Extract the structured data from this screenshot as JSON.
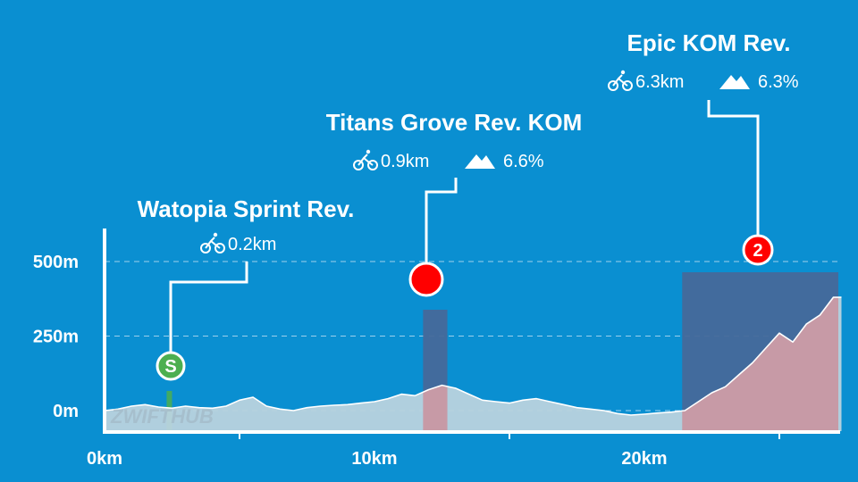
{
  "chart_data": {
    "type": "area",
    "xlabel": "",
    "ylabel": "",
    "xlim": [
      0,
      27.3
    ],
    "ylim": [
      -50,
      620
    ],
    "grid": true,
    "x_ticks": [
      {
        "value": 0,
        "label": "0km"
      },
      {
        "value": 10,
        "label": "10km"
      },
      {
        "value": 20,
        "label": "20km"
      }
    ],
    "y_ticks": [
      {
        "value": 0,
        "label": "0m"
      },
      {
        "value": 250,
        "label": "250m"
      },
      {
        "value": 500,
        "label": "500m"
      }
    ],
    "elevation": {
      "x": [
        0,
        0.5,
        1.0,
        1.5,
        2.0,
        2.5,
        3.0,
        3.5,
        4.0,
        4.5,
        5.0,
        5.5,
        6.0,
        6.5,
        7.0,
        7.5,
        8.0,
        8.5,
        9.0,
        9.5,
        10.0,
        10.5,
        11.0,
        11.5,
        12.0,
        12.5,
        13.0,
        13.5,
        14.0,
        14.5,
        15.0,
        15.5,
        16.0,
        16.5,
        17.0,
        17.5,
        18.0,
        18.5,
        19.0,
        19.5,
        20.0,
        20.5,
        21.0,
        21.5,
        22.0,
        22.5,
        23.0,
        23.5,
        24.0,
        24.5,
        25.0,
        25.5,
        26.0,
        26.5,
        27.0,
        27.3
      ],
      "y": [
        0,
        5,
        15,
        20,
        12,
        8,
        15,
        10,
        8,
        15,
        35,
        45,
        15,
        5,
        0,
        10,
        15,
        18,
        20,
        25,
        30,
        40,
        55,
        50,
        70,
        85,
        75,
        55,
        35,
        30,
        25,
        35,
        40,
        30,
        20,
        10,
        5,
        0,
        -10,
        -15,
        -12,
        -8,
        -5,
        0,
        30,
        60,
        80,
        120,
        160,
        210,
        260,
        230,
        290,
        320,
        380,
        380
      ]
    },
    "segments": [
      {
        "title": "Watopia Sprint Rev.",
        "marker": "S",
        "type": "sprint",
        "start": 2.3,
        "end": 2.5,
        "distance": "0.2km",
        "gradient": "",
        "color": "#4caf50"
      },
      {
        "title": "Titans Grove Rev. KOM",
        "marker": "",
        "type": "kom",
        "start": 11.8,
        "end": 12.7,
        "distance": "0.9km",
        "gradient": "6.6%",
        "color": "#ff0000"
      },
      {
        "title": "Epic KOM Rev.",
        "marker": "2",
        "type": "kom",
        "start": 21.4,
        "end": 27.7,
        "distance": "6.3km",
        "gradient": "6.3%",
        "color": "#ff0000"
      }
    ]
  },
  "watermark": "ZWIFTHUB",
  "colors": {
    "background": "#0a8fd1",
    "profile_fill": "#b9d3de",
    "climb_fill": "#c79aa6",
    "climb_band": "#46699a",
    "sprint_band": "#4caf50",
    "kom_marker": "#ff0000",
    "sprint_marker": "#4caf50"
  },
  "icons": {
    "distance": "bicycle-icon",
    "gradient": "mountain-icon"
  }
}
